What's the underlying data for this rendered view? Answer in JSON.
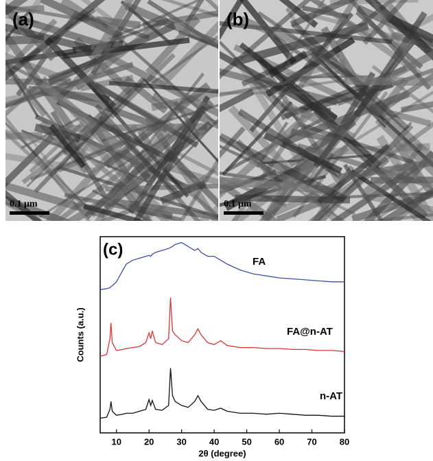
{
  "panels": [
    {
      "label": "(a)",
      "scale_bar": "0.1 μm"
    },
    {
      "label": "(b)",
      "scale_bar": "0.1 μm"
    }
  ],
  "chart_data": {
    "type": "line",
    "panel_label": "(c)",
    "x_label": "2θ (degree)",
    "y_label": "Counts (a.u.)",
    "xlim": [
      5,
      80
    ],
    "xticks": [
      10,
      20,
      30,
      40,
      50,
      60,
      70,
      80
    ],
    "ylim": [
      0,
      100
    ],
    "x": [
      5,
      7,
      8,
      8.3,
      8.7,
      10,
      12,
      13,
      15,
      17,
      19,
      20,
      20.5,
      21,
      22,
      24,
      26,
      26.6,
      27.2,
      28,
      30,
      32,
      34,
      35,
      36,
      38,
      40,
      42,
      44,
      48,
      52,
      56,
      60,
      64,
      68,
      72,
      76,
      80
    ],
    "series": [
      {
        "name": "FA",
        "color": "#3b4fa3",
        "values": [
          73,
          73.5,
          74,
          74.5,
          75,
          77,
          83,
          86,
          88,
          89,
          90,
          90.5,
          90,
          91,
          92,
          93,
          94,
          94.5,
          95,
          96,
          97,
          95,
          93,
          94,
          92,
          90,
          90,
          88,
          86,
          83,
          81,
          80,
          79,
          78.5,
          78,
          77.5,
          77,
          77
        ]
      },
      {
        "name": "FA@n-AT",
        "color": "#e03333",
        "values": [
          39,
          40,
          48,
          56,
          46,
          42,
          42.5,
          43,
          43.5,
          44,
          46,
          51,
          48,
          52,
          46,
          45,
          48,
          69,
          52,
          50,
          47,
          46,
          50,
          53,
          50,
          46,
          45,
          47,
          44.5,
          43.5,
          43.5,
          43,
          43,
          42.5,
          42.5,
          42,
          42,
          41.5
        ]
      },
      {
        "name": "n-AT",
        "color": "#111111",
        "values": [
          7.5,
          8,
          12,
          16,
          11,
          9,
          9.5,
          10,
          10,
          11,
          12,
          17,
          14,
          16.5,
          12,
          11.5,
          14,
          33,
          19,
          16,
          14,
          13,
          16,
          19,
          16,
          12,
          11.5,
          12.6,
          11,
          10,
          10,
          9.5,
          10,
          9.5,
          9,
          9,
          8.5,
          8.5
        ]
      }
    ]
  }
}
